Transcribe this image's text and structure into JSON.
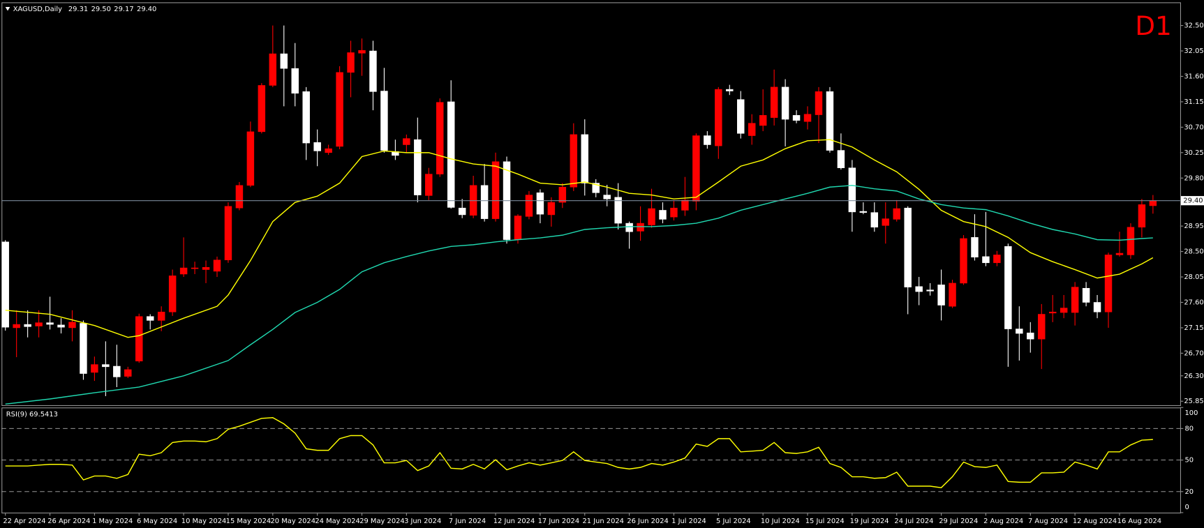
{
  "chart_data": [
    {
      "type": "candlestick",
      "title": "XAGUSD,Daily",
      "ohlc_header": [
        "29.31",
        "29.50",
        "29.17",
        "29.40"
      ],
      "timeframe": "D1",
      "up_color": "#ff0000",
      "down_color": "#ffffff",
      "categories": [
        "22 Apr 2024",
        null,
        null,
        null,
        "26 Apr 2024",
        null,
        null,
        null,
        "1 May 2024",
        null,
        null,
        null,
        "6 May 2024",
        null,
        null,
        null,
        "10 May 2024",
        null,
        null,
        null,
        "15 May 2024",
        null,
        null,
        null,
        "20 May 2024",
        null,
        null,
        null,
        "24 May 2024",
        null,
        null,
        null,
        "29 May 2024",
        null,
        null,
        null,
        "3 Jun 2024",
        null,
        null,
        null,
        "7 Jun 2024",
        null,
        null,
        null,
        "12 Jun 2024",
        null,
        null,
        null,
        "17 Jun 2024",
        null,
        null,
        null,
        "21 Jun 2024",
        null,
        null,
        null,
        "26 Jun 2024",
        null,
        null,
        null,
        "1 Jul 2024",
        null,
        null,
        null,
        "5 Jul 2024",
        null,
        null,
        null,
        "10 Jul 2024",
        null,
        null,
        null,
        "15 Jul 2024",
        null,
        null,
        null,
        "19 Jul 2024",
        null,
        null,
        null,
        "24 Jul 2024",
        null,
        null,
        null,
        "29 Jul 2024",
        null,
        null,
        null,
        "2 Aug 2024",
        null,
        null,
        null,
        "7 Aug 2024",
        null,
        null,
        null,
        "12 Aug 2024",
        null,
        null,
        null,
        "16 Aug 2024",
        null,
        null,
        null
      ],
      "ohlc": [
        [
          28.67,
          28.7,
          27.1,
          27.16
        ],
        [
          27.15,
          27.46,
          26.63,
          27.21
        ],
        [
          27.21,
          27.46,
          26.98,
          27.17
        ],
        [
          27.18,
          27.46,
          26.98,
          27.24
        ],
        [
          27.24,
          27.7,
          27.12,
          27.21
        ],
        [
          27.2,
          27.32,
          27.05,
          27.16
        ],
        [
          27.15,
          27.46,
          26.91,
          27.25
        ],
        [
          27.23,
          27.28,
          26.23,
          26.34
        ],
        [
          26.36,
          26.64,
          26.21,
          26.5
        ],
        [
          26.5,
          26.91,
          25.94,
          26.46
        ],
        [
          26.47,
          26.85,
          26.1,
          26.28
        ],
        [
          26.29,
          26.46,
          26.26,
          26.41
        ],
        [
          26.56,
          27.4,
          26.53,
          27.35
        ],
        [
          27.35,
          27.39,
          27.12,
          27.28
        ],
        [
          27.28,
          27.53,
          27.09,
          27.43
        ],
        [
          27.43,
          28.18,
          27.36,
          28.07
        ],
        [
          28.1,
          28.75,
          28.05,
          28.21
        ],
        [
          28.2,
          28.32,
          28.1,
          28.21
        ],
        [
          28.18,
          28.34,
          27.94,
          28.22
        ],
        [
          28.15,
          28.41,
          28.05,
          28.35
        ],
        [
          28.35,
          29.37,
          28.3,
          29.3
        ],
        [
          29.27,
          29.73,
          29.23,
          29.67
        ],
        [
          29.67,
          30.8,
          29.64,
          30.62
        ],
        [
          30.62,
          31.48,
          30.59,
          31.44
        ],
        [
          31.44,
          32.5,
          31.41,
          32.0
        ],
        [
          32.0,
          32.5,
          31.07,
          31.74
        ],
        [
          31.74,
          32.19,
          31.07,
          31.3
        ],
        [
          31.33,
          31.41,
          30.12,
          30.42
        ],
        [
          30.43,
          30.66,
          30.01,
          30.28
        ],
        [
          30.25,
          30.39,
          30.21,
          30.32
        ],
        [
          30.36,
          31.78,
          30.31,
          31.67
        ],
        [
          31.67,
          32.23,
          31.23,
          32.02
        ],
        [
          32.01,
          32.27,
          31.61,
          32.06
        ],
        [
          32.05,
          32.23,
          31.0,
          31.33
        ],
        [
          31.34,
          31.75,
          30.25,
          30.29
        ],
        [
          30.27,
          30.48,
          30.12,
          30.2
        ],
        [
          30.39,
          30.57,
          30.25,
          30.5
        ],
        [
          30.48,
          30.87,
          29.37,
          29.5
        ],
        [
          29.49,
          29.98,
          29.41,
          29.87
        ],
        [
          29.87,
          31.21,
          29.82,
          31.14
        ],
        [
          31.15,
          31.53,
          29.26,
          29.28
        ],
        [
          29.27,
          29.43,
          29.09,
          29.15
        ],
        [
          29.14,
          29.84,
          29.09,
          29.67
        ],
        [
          29.67,
          30.05,
          29.03,
          29.08
        ],
        [
          29.08,
          30.25,
          29.03,
          30.09
        ],
        [
          30.09,
          30.18,
          28.64,
          28.71
        ],
        [
          28.71,
          29.16,
          28.64,
          29.13
        ],
        [
          29.12,
          29.57,
          29.07,
          29.5
        ],
        [
          29.54,
          29.6,
          29.0,
          29.16
        ],
        [
          29.15,
          29.46,
          28.94,
          29.37
        ],
        [
          29.37,
          29.71,
          29.27,
          29.64
        ],
        [
          29.64,
          30.77,
          29.57,
          30.57
        ],
        [
          30.57,
          30.84,
          29.49,
          29.71
        ],
        [
          29.71,
          29.78,
          29.46,
          29.54
        ],
        [
          29.5,
          29.68,
          29.3,
          29.43
        ],
        [
          29.46,
          29.71,
          28.89,
          29.0
        ],
        [
          29.0,
          29.03,
          28.55,
          28.85
        ],
        [
          28.86,
          29.3,
          28.69,
          29.0
        ],
        [
          28.97,
          29.61,
          28.92,
          29.26
        ],
        [
          29.23,
          29.37,
          29.0,
          29.07
        ],
        [
          29.11,
          29.41,
          29.05,
          29.27
        ],
        [
          29.23,
          29.82,
          29.13,
          29.41
        ],
        [
          29.39,
          30.59,
          29.23,
          30.55
        ],
        [
          30.55,
          30.63,
          30.32,
          30.39
        ],
        [
          30.37,
          31.41,
          30.14,
          31.37
        ],
        [
          31.37,
          31.45,
          31.27,
          31.34
        ],
        [
          31.19,
          31.34,
          30.5,
          30.59
        ],
        [
          30.55,
          30.93,
          30.39,
          30.77
        ],
        [
          30.73,
          31.37,
          30.63,
          30.91
        ],
        [
          30.87,
          31.72,
          30.73,
          31.41
        ],
        [
          31.41,
          31.55,
          30.36,
          30.84
        ],
        [
          30.91,
          31.0,
          30.77,
          30.82
        ],
        [
          30.8,
          31.07,
          30.66,
          30.93
        ],
        [
          30.92,
          31.41,
          30.42,
          31.33
        ],
        [
          31.33,
          31.41,
          30.25,
          30.29
        ],
        [
          30.29,
          30.59,
          29.95,
          29.98
        ],
        [
          29.98,
          30.12,
          28.85,
          29.2
        ],
        [
          29.21,
          29.37,
          29.16,
          29.19
        ],
        [
          29.19,
          29.37,
          28.85,
          28.93
        ],
        [
          28.96,
          29.37,
          28.64,
          29.08
        ],
        [
          29.07,
          29.41,
          29.03,
          29.26
        ],
        [
          29.27,
          29.3,
          27.39,
          27.87
        ],
        [
          27.88,
          28.05,
          27.55,
          27.79
        ],
        [
          27.82,
          27.94,
          27.72,
          27.8
        ],
        [
          27.91,
          28.18,
          27.28,
          27.55
        ],
        [
          27.53,
          28.0,
          27.5,
          27.94
        ],
        [
          27.94,
          28.79,
          27.91,
          28.73
        ],
        [
          28.75,
          29.16,
          28.34,
          28.4
        ],
        [
          28.41,
          29.2,
          28.24,
          28.3
        ],
        [
          28.3,
          28.51,
          28.24,
          28.44
        ],
        [
          28.59,
          28.64,
          26.46,
          27.13
        ],
        [
          27.13,
          27.53,
          26.57,
          27.05
        ],
        [
          27.06,
          27.25,
          26.71,
          26.95
        ],
        [
          26.95,
          27.57,
          26.42,
          27.39
        ],
        [
          27.41,
          27.73,
          27.25,
          27.43
        ],
        [
          27.42,
          27.73,
          27.32,
          27.5
        ],
        [
          27.42,
          27.96,
          27.19,
          27.87
        ],
        [
          27.85,
          27.96,
          27.53,
          27.6
        ],
        [
          27.6,
          27.73,
          27.32,
          27.43
        ],
        [
          27.43,
          28.48,
          27.15,
          28.44
        ],
        [
          28.44,
          28.85,
          28.41,
          28.47
        ],
        [
          28.44,
          29.0,
          28.37,
          28.93
        ],
        [
          28.93,
          29.43,
          28.75,
          29.33
        ],
        [
          29.31,
          29.5,
          29.17,
          29.4
        ]
      ],
      "series": [
        {
          "color": "#ffff00",
          "x": [
            0,
            4,
            8,
            11,
            12,
            16,
            19,
            20,
            22,
            24,
            26,
            28,
            30,
            32,
            34,
            36,
            38,
            40,
            42,
            44,
            46,
            48,
            50,
            52,
            54,
            56,
            58,
            60,
            62,
            64,
            66,
            68,
            70,
            72,
            74,
            76,
            78,
            80,
            82,
            84,
            86,
            88,
            90,
            92,
            94,
            96,
            98,
            100,
            102,
            103
          ],
          "values": [
            27.46,
            27.39,
            27.19,
            26.98,
            27.01,
            27.32,
            27.53,
            27.73,
            28.34,
            29.03,
            29.37,
            29.48,
            29.71,
            30.18,
            30.28,
            30.25,
            30.25,
            30.14,
            30.05,
            30.01,
            29.87,
            29.71,
            29.68,
            29.73,
            29.64,
            29.53,
            29.5,
            29.43,
            29.46,
            29.73,
            30.01,
            30.12,
            30.32,
            30.46,
            30.48,
            30.35,
            30.12,
            29.91,
            29.6,
            29.23,
            29.03,
            28.94,
            28.75,
            28.48,
            28.32,
            28.18,
            28.03,
            28.1,
            28.28,
            28.39
          ]
        },
        {
          "color": "#20d8b0",
          "x": [
            0,
            4,
            8,
            12,
            16,
            20,
            22,
            24,
            26,
            28,
            30,
            32,
            34,
            36,
            38,
            40,
            42,
            44,
            46,
            48,
            50,
            52,
            54,
            56,
            58,
            60,
            62,
            64,
            66,
            68,
            70,
            72,
            74,
            76,
            78,
            80,
            82,
            84,
            86,
            88,
            90,
            92,
            94,
            96,
            98,
            100,
            102,
            103
          ],
          "values": [
            25.8,
            25.89,
            26.0,
            26.1,
            26.3,
            26.57,
            26.85,
            27.12,
            27.42,
            27.6,
            27.83,
            28.14,
            28.3,
            28.41,
            28.51,
            28.59,
            28.62,
            28.67,
            28.71,
            28.74,
            28.79,
            28.89,
            28.92,
            28.94,
            28.94,
            28.96,
            29.0,
            29.09,
            29.23,
            29.33,
            29.43,
            29.53,
            29.64,
            29.67,
            29.61,
            29.57,
            29.43,
            29.33,
            29.27,
            29.24,
            29.13,
            29.0,
            28.89,
            28.81,
            28.71,
            28.7,
            28.73,
            28.74
          ]
        }
      ],
      "ylim": [
        25.78,
        32.91
      ],
      "yticks": [
        25.85,
        {
          "value": 26.3,
          "label": "26.30"
        },
        {
          "value": 26.7,
          "label": "26.70"
        },
        27.15,
        {
          "value": 27.6,
          "label": "27.60"
        },
        28.05,
        {
          "value": 28.5,
          "label": "28.50"
        },
        28.95,
        {
          "value": 29.8,
          "label": "29.80"
        },
        30.25,
        {
          "value": 30.7,
          "label": "30.70"
        },
        31.15,
        {
          "value": 31.6,
          "label": "31.60"
        },
        32.05,
        {
          "value": 32.5,
          "label": "32.50"
        }
      ],
      "last_price": {
        "value": 29.4,
        "label": "29.40"
      }
    },
    {
      "type": "line",
      "title": "RSI(9) 69.5413",
      "color": "#ffff00",
      "values": [
        44.4,
        44.4,
        44.4,
        45.2,
        45.9,
        45.9,
        45.2,
        31.1,
        34.8,
        34.8,
        32.6,
        36.3,
        55.6,
        54.1,
        57.0,
        66.7,
        68.1,
        68.1,
        67.4,
        70.4,
        79.3,
        82.2,
        85.9,
        89.6,
        90.4,
        84.4,
        75.6,
        60.7,
        59.3,
        59.3,
        70.4,
        73.3,
        73.3,
        64.4,
        47.4,
        47.4,
        49.6,
        40.0,
        44.4,
        57.0,
        42.2,
        41.5,
        45.9,
        41.5,
        50.4,
        40.7,
        44.4,
        47.4,
        45.2,
        47.4,
        49.6,
        57.8,
        49.6,
        48.1,
        46.7,
        43.0,
        41.5,
        43.0,
        46.7,
        45.2,
        48.1,
        51.9,
        65.2,
        63.0,
        70.4,
        70.4,
        57.8,
        58.5,
        59.3,
        66.7,
        57.0,
        56.3,
        57.8,
        62.2,
        46.7,
        43.0,
        34.1,
        34.1,
        32.6,
        33.3,
        38.5,
        25.2,
        25.2,
        25.2,
        23.7,
        34.1,
        48.1,
        43.7,
        43.0,
        45.2,
        29.6,
        28.9,
        28.9,
        37.8,
        37.8,
        38.5,
        48.1,
        45.2,
        41.5,
        57.8,
        57.8,
        64.4,
        68.9,
        69.54
      ],
      "ylim": [
        0,
        100
      ],
      "yticks": [
        100,
        80,
        50,
        20,
        0
      ],
      "levels": [
        20,
        50,
        80
      ]
    }
  ]
}
